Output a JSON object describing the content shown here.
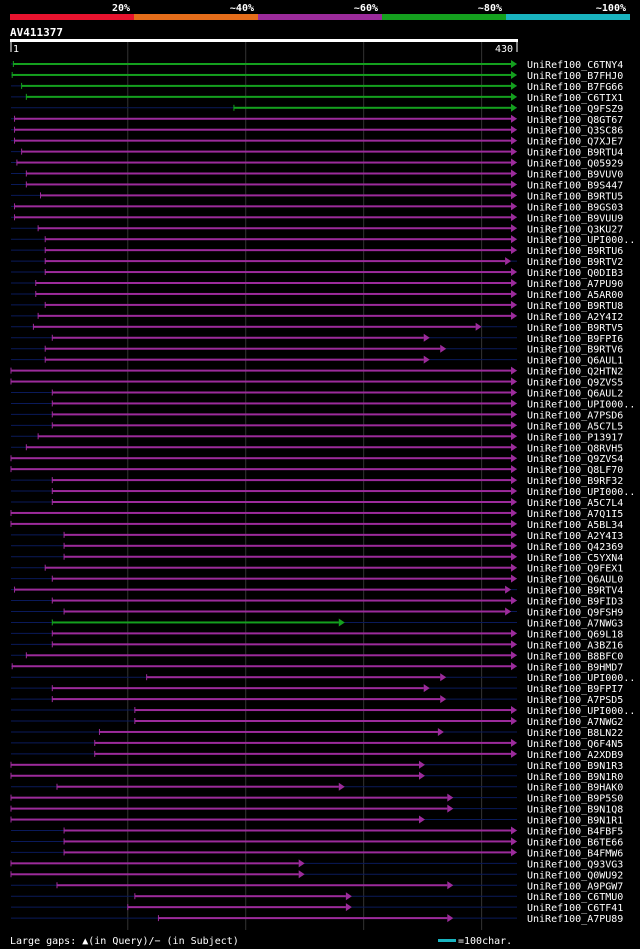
{
  "chart_data": {
    "type": "alignment-overview",
    "title": "AV411377",
    "axis": {
      "start_label": "1",
      "end_label": "430",
      "start": 1,
      "end": 430
    },
    "identity_legend": [
      {
        "label": "20%",
        "color": "#e8132e"
      },
      {
        "label": "~40%",
        "color": "#e46d1a"
      },
      {
        "label": "~60%",
        "color": "#9c2b9b"
      },
      {
        "label": "~80%",
        "color": "#14a01e"
      },
      {
        "label": "~100%",
        "color": "#19b3bf"
      }
    ],
    "hits": [
      {
        "name": "UniRef100_C6TNY4",
        "start": 3,
        "end": 430,
        "color": "#14a01e"
      },
      {
        "name": "UniRef100_B7FHJ0",
        "start": 2,
        "end": 430,
        "color": "#14a01e"
      },
      {
        "name": "UniRef100_B7FG66",
        "start": 10,
        "end": 430,
        "color": "#14a01e"
      },
      {
        "name": "UniRef100_C6TIX1",
        "start": 14,
        "end": 430,
        "color": "#14a01e"
      },
      {
        "name": "UniRef100_Q9FSZ9",
        "start": 190,
        "end": 430,
        "color": "#14a01e"
      },
      {
        "name": "UniRef100_Q8GT67",
        "start": 4,
        "end": 430,
        "color": "#9c2b9b"
      },
      {
        "name": "UniRef100_Q3SC86",
        "start": 4,
        "end": 430,
        "color": "#9c2b9b"
      },
      {
        "name": "UniRef100_Q7XJE7",
        "start": 4,
        "end": 430,
        "color": "#9c2b9b"
      },
      {
        "name": "UniRef100_B9RTU4",
        "start": 10,
        "end": 430,
        "color": "#9c2b9b"
      },
      {
        "name": "UniRef100_Q05929",
        "start": 6,
        "end": 430,
        "color": "#9c2b9b"
      },
      {
        "name": "UniRef100_B9VUV0",
        "start": 14,
        "end": 430,
        "color": "#9c2b9b"
      },
      {
        "name": "UniRef100_B9S447",
        "start": 14,
        "end": 430,
        "color": "#9c2b9b"
      },
      {
        "name": "UniRef100_B9RTU5",
        "start": 26,
        "end": 430,
        "color": "#9c2b9b"
      },
      {
        "name": "UniRef100_B9GS03",
        "start": 4,
        "end": 430,
        "color": "#9c2b9b"
      },
      {
        "name": "UniRef100_B9VUU9",
        "start": 4,
        "end": 430,
        "color": "#9c2b9b"
      },
      {
        "name": "UniRef100_Q3KU27",
        "start": 24,
        "end": 430,
        "color": "#9c2b9b"
      },
      {
        "name": "UniRef100_UPI000..",
        "start": 30,
        "end": 430,
        "color": "#9c2b9b"
      },
      {
        "name": "UniRef100_B9RTU6",
        "start": 30,
        "end": 430,
        "color": "#9c2b9b"
      },
      {
        "name": "UniRef100_B9RTV2",
        "start": 30,
        "end": 425,
        "color": "#9c2b9b"
      },
      {
        "name": "UniRef100_Q0DIB3",
        "start": 30,
        "end": 430,
        "color": "#9c2b9b"
      },
      {
        "name": "UniRef100_A7PU90",
        "start": 22,
        "end": 430,
        "color": "#9c2b9b"
      },
      {
        "name": "UniRef100_A5AR00",
        "start": 22,
        "end": 430,
        "color": "#9c2b9b"
      },
      {
        "name": "UniRef100_B9RTU8",
        "start": 30,
        "end": 430,
        "color": "#9c2b9b"
      },
      {
        "name": "UniRef100_A2Y4I2",
        "start": 24,
        "end": 430,
        "color": "#9c2b9b"
      },
      {
        "name": "UniRef100_B9RTV5",
        "start": 20,
        "end": 400,
        "color": "#9c2b9b"
      },
      {
        "name": "UniRef100_B9FPI6",
        "start": 36,
        "end": 356,
        "color": "#9c2b9b"
      },
      {
        "name": "UniRef100_B9RTV6",
        "start": 30,
        "end": 370,
        "color": "#9c2b9b"
      },
      {
        "name": "UniRef100_Q6AUL1",
        "start": 30,
        "end": 356,
        "color": "#9c2b9b"
      },
      {
        "name": "UniRef100_Q2HTN2",
        "start": 1,
        "end": 430,
        "color": "#9c2b9b"
      },
      {
        "name": "UniRef100_Q9ZVS5",
        "start": 1,
        "end": 430,
        "color": "#9c2b9b"
      },
      {
        "name": "UniRef100_Q6AUL2",
        "start": 36,
        "end": 430,
        "color": "#9c2b9b"
      },
      {
        "name": "UniRef100_UPI000..",
        "start": 36,
        "end": 430,
        "color": "#9c2b9b"
      },
      {
        "name": "UniRef100_A7PSD6",
        "start": 36,
        "end": 430,
        "color": "#9c2b9b"
      },
      {
        "name": "UniRef100_A5C7L5",
        "start": 36,
        "end": 430,
        "color": "#9c2b9b"
      },
      {
        "name": "UniRef100_P13917",
        "start": 24,
        "end": 430,
        "color": "#9c2b9b"
      },
      {
        "name": "UniRef100_Q8RVH5",
        "start": 14,
        "end": 430,
        "color": "#9c2b9b"
      },
      {
        "name": "UniRef100_Q9ZVS4",
        "start": 1,
        "end": 430,
        "color": "#9c2b9b"
      },
      {
        "name": "UniRef100_Q8LF70",
        "start": 1,
        "end": 430,
        "color": "#9c2b9b"
      },
      {
        "name": "UniRef100_B9RF32",
        "start": 36,
        "end": 430,
        "color": "#9c2b9b"
      },
      {
        "name": "UniRef100_UPI000..",
        "start": 36,
        "end": 430,
        "color": "#9c2b9b"
      },
      {
        "name": "UniRef100_A5C7L4",
        "start": 36,
        "end": 430,
        "color": "#9c2b9b"
      },
      {
        "name": "UniRef100_A7Q1I5",
        "start": 1,
        "end": 430,
        "color": "#9c2b9b"
      },
      {
        "name": "UniRef100_A5BL34",
        "start": 1,
        "end": 430,
        "color": "#9c2b9b"
      },
      {
        "name": "UniRef100_A2Y4I3",
        "start": 46,
        "end": 430,
        "color": "#9c2b9b"
      },
      {
        "name": "UniRef100_Q42369",
        "start": 46,
        "end": 430,
        "color": "#9c2b9b"
      },
      {
        "name": "UniRef100_C5YXN4",
        "start": 46,
        "end": 430,
        "color": "#9c2b9b"
      },
      {
        "name": "UniRef100_Q9FEX1",
        "start": 30,
        "end": 430,
        "color": "#9c2b9b"
      },
      {
        "name": "UniRef100_Q6AUL0",
        "start": 36,
        "end": 430,
        "color": "#9c2b9b"
      },
      {
        "name": "UniRef100_B9RTV4",
        "start": 4,
        "end": 425,
        "color": "#9c2b9b"
      },
      {
        "name": "UniRef100_B9FID3",
        "start": 36,
        "end": 430,
        "color": "#9c2b9b"
      },
      {
        "name": "UniRef100_Q9FSH9",
        "start": 46,
        "end": 425,
        "color": "#9c2b9b"
      },
      {
        "name": "UniRef100_A7NWG3",
        "start": 36,
        "end": 284,
        "color": "#14a01e"
      },
      {
        "name": "UniRef100_Q69L18",
        "start": 36,
        "end": 430,
        "color": "#9c2b9b"
      },
      {
        "name": "UniRef100_A3BZ16",
        "start": 36,
        "end": 430,
        "color": "#9c2b9b"
      },
      {
        "name": "UniRef100_B8BFC0",
        "start": 14,
        "end": 430,
        "color": "#9c2b9b"
      },
      {
        "name": "UniRef100_B9HMD7",
        "start": 2,
        "end": 430,
        "color": "#9c2b9b"
      },
      {
        "name": "UniRef100_UPI000..",
        "start": 116,
        "end": 370,
        "color": "#9c2b9b"
      },
      {
        "name": "UniRef100_B9FPI7",
        "start": 36,
        "end": 356,
        "color": "#9c2b9b"
      },
      {
        "name": "UniRef100_A7PSD5",
        "start": 36,
        "end": 370,
        "color": "#9c2b9b"
      },
      {
        "name": "UniRef100_UPI000..",
        "start": 106,
        "end": 430,
        "color": "#9c2b9b"
      },
      {
        "name": "UniRef100_A7NWG2",
        "start": 106,
        "end": 430,
        "color": "#9c2b9b"
      },
      {
        "name": "UniRef100_B8LN22",
        "start": 76,
        "end": 368,
        "color": "#9c2b9b"
      },
      {
        "name": "UniRef100_Q6F4N5",
        "start": 72,
        "end": 430,
        "color": "#9c2b9b"
      },
      {
        "name": "UniRef100_A2XDB9",
        "start": 72,
        "end": 430,
        "color": "#9c2b9b"
      },
      {
        "name": "UniRef100_B9N1R3",
        "start": 1,
        "end": 352,
        "color": "#9c2b9b"
      },
      {
        "name": "UniRef100_B9N1R0",
        "start": 1,
        "end": 352,
        "color": "#9c2b9b"
      },
      {
        "name": "UniRef100_B9HAK0",
        "start": 40,
        "end": 284,
        "color": "#9c2b9b"
      },
      {
        "name": "UniRef100_B9P5S0",
        "start": 1,
        "end": 376,
        "color": "#9c2b9b"
      },
      {
        "name": "UniRef100_B9N1Q8",
        "start": 1,
        "end": 376,
        "color": "#9c2b9b"
      },
      {
        "name": "UniRef100_B9N1R1",
        "start": 1,
        "end": 352,
        "color": "#9c2b9b"
      },
      {
        "name": "UniRef100_B4FBF5",
        "start": 46,
        "end": 430,
        "color": "#9c2b9b"
      },
      {
        "name": "UniRef100_B6TE66",
        "start": 46,
        "end": 430,
        "color": "#9c2b9b"
      },
      {
        "name": "UniRef100_B4FMW6",
        "start": 46,
        "end": 430,
        "color": "#9c2b9b"
      },
      {
        "name": "UniRef100_Q93VG3",
        "start": 1,
        "end": 250,
        "color": "#9c2b9b"
      },
      {
        "name": "UniRef100_Q0WU92",
        "start": 1,
        "end": 250,
        "color": "#9c2b9b"
      },
      {
        "name": "UniRef100_A9PGW7",
        "start": 40,
        "end": 376,
        "color": "#9c2b9b"
      },
      {
        "name": "UniRef100_C6TMU0",
        "start": 106,
        "end": 290,
        "color": "#9c2b9b"
      },
      {
        "name": "UniRef100_C6TF41",
        "start": 100,
        "end": 290,
        "color": "#9c2b9b"
      },
      {
        "name": "UniRef100_A7PU89",
        "start": 126,
        "end": 376,
        "color": "#9c2b9b"
      }
    ],
    "footer": {
      "gap_legend": "Large gaps: ▲(in Query)/− (in Subject)",
      "scale_legend": "=100char.",
      "scale_color": "#19b3bf"
    }
  }
}
